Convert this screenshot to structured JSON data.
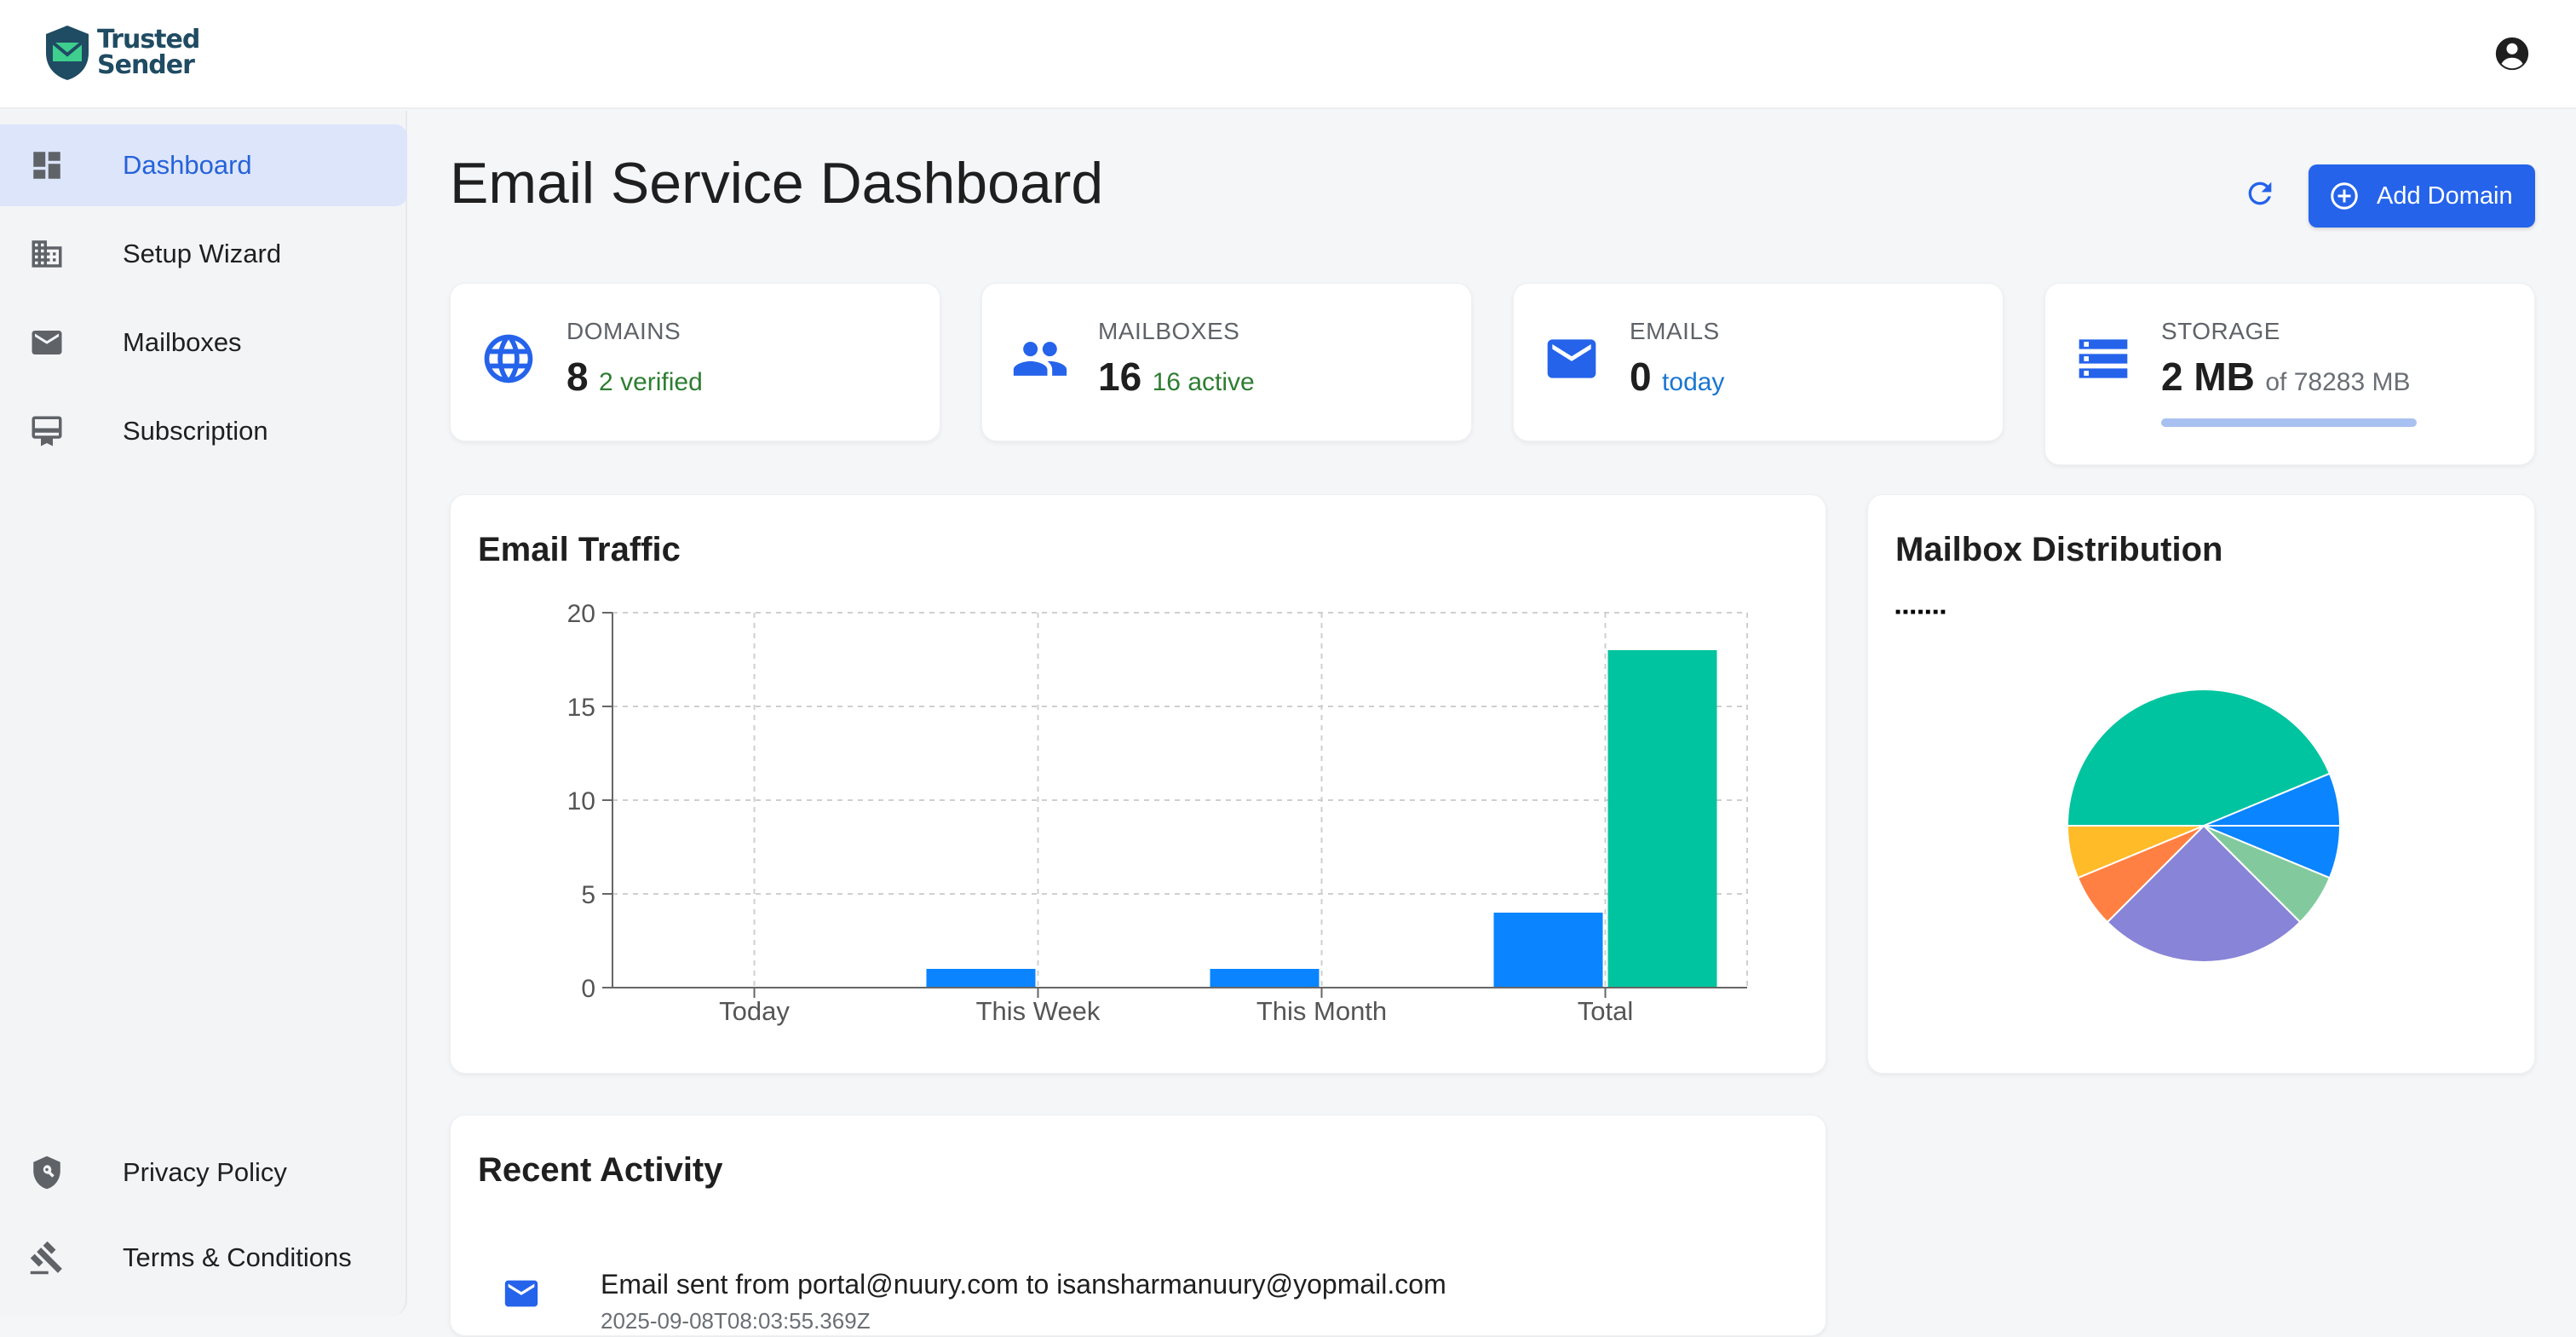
{
  "app": {
    "logo_line1": "Trusted",
    "logo_line2": "Sender"
  },
  "sidebar": {
    "items": [
      {
        "label": "Dashboard",
        "icon": "dashboard-icon",
        "active": true
      },
      {
        "label": "Setup Wizard",
        "icon": "building-icon",
        "active": false
      },
      {
        "label": "Mailboxes",
        "icon": "mail-icon",
        "active": false
      },
      {
        "label": "Subscription",
        "icon": "card-icon",
        "active": false
      }
    ],
    "footer": [
      {
        "label": "Privacy Policy",
        "icon": "shield-icon"
      },
      {
        "label": "Terms & Conditions",
        "icon": "gavel-icon"
      }
    ]
  },
  "main": {
    "title": "Email Service Dashboard",
    "add_domain_label": "Add Domain",
    "refresh_icon": "refresh-icon"
  },
  "stats": {
    "domains": {
      "label": "DOMAINS",
      "value": "8",
      "sub": "2 verified",
      "icon": "globe-icon"
    },
    "mailboxes": {
      "label": "MAILBOXES",
      "value": "16",
      "sub": "16 active",
      "icon": "people-icon"
    },
    "emails": {
      "label": "EMAILS",
      "value": "0",
      "sub": "today",
      "icon": "mail-icon"
    },
    "storage": {
      "label": "STORAGE",
      "value": "2 MB",
      "sub": "of 78283 MB",
      "icon": "storage-icon",
      "used_fraction": 2.55e-05
    }
  },
  "colors": {
    "accent": "#2563eb",
    "bar_blue": "#0a84ff",
    "bar_green": "#00c49f"
  },
  "traffic": {
    "title": "Email Traffic"
  },
  "distribution": {
    "title": "Mailbox Distribution",
    "legend_text": "■ ■ ■ ■ ■ ■ ■"
  },
  "activity": {
    "title": "Recent Activity",
    "items": [
      {
        "text": "Email sent from portal@nuury.com to isansharmanuury@yopmail.com",
        "time": "2025-09-08T08:03:55.369Z"
      }
    ]
  },
  "chart_data": [
    {
      "type": "bar",
      "categories": [
        "Today",
        "This Week",
        "This Month",
        "Total"
      ],
      "series": [
        {
          "color": "#0a84ff",
          "values": [
            0,
            1,
            1,
            4
          ]
        },
        {
          "color": "#00c49f",
          "values": [
            0,
            0,
            0,
            18
          ]
        }
      ],
      "ylim": [
        0,
        20
      ],
      "yticks": [
        0,
        5,
        10,
        15,
        20
      ],
      "grid": true
    },
    {
      "type": "pie",
      "slices": [
        {
          "value": 7,
          "color": "#00c49f"
        },
        {
          "value": 1,
          "color": "#0a84ff"
        },
        {
          "value": 1,
          "color": "#0a84ff"
        },
        {
          "value": 1,
          "color": "#82ca9d"
        },
        {
          "value": 4,
          "color": "#8884d8"
        },
        {
          "value": 1,
          "color": "#ff8042"
        },
        {
          "value": 1,
          "color": "#ffbb28"
        }
      ]
    }
  ]
}
